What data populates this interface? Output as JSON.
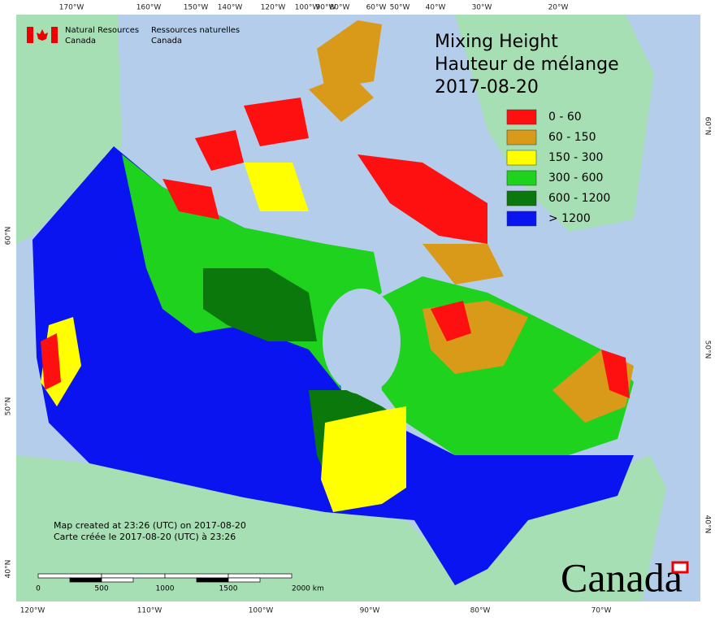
{
  "map": {
    "title": [
      "Mixing Height",
      "Hauteur de mélange",
      "2017-08-20"
    ],
    "agency": {
      "en": [
        "Natural Resources",
        "Canada"
      ],
      "fr": [
        "Ressources naturelles",
        "Canada"
      ]
    },
    "legend": [
      {
        "label": "0 - 60",
        "color": "#ff1010"
      },
      {
        "label": "60 - 150",
        "color": "#d99a1a"
      },
      {
        "label": "150 - 300",
        "color": "#ffff00"
      },
      {
        "label": "300 - 600",
        "color": "#1ed21e"
      },
      {
        "label": "600 - 1200",
        "color": "#0a780a"
      },
      {
        "label": "> 1200",
        "color": "#0a14f0"
      }
    ],
    "top_labels": [
      "170°W",
      "160°W",
      "150°W",
      "140°W",
      "120°W",
      "100°W",
      "90°W",
      "80°W",
      "60°W",
      "50°W",
      "40°W",
      "30°W",
      "20°W"
    ],
    "bottom_labels": [
      "120°W",
      "110°W",
      "100°W",
      "90°W",
      "80°W",
      "70°W"
    ],
    "left_labels": [
      "60°N",
      "50°N",
      "40°N"
    ],
    "right_labels": [
      "60°N",
      "50°N",
      "40°N"
    ],
    "notes": [
      "Map created at 23:26 (UTC) on 2017-08-20",
      "Carte créée le 2017-08-20 (UTC) à 23:26"
    ],
    "scale_labels": [
      "0",
      "500",
      "1000",
      "1500",
      "2000 km"
    ],
    "wordmark": "Canada"
  }
}
